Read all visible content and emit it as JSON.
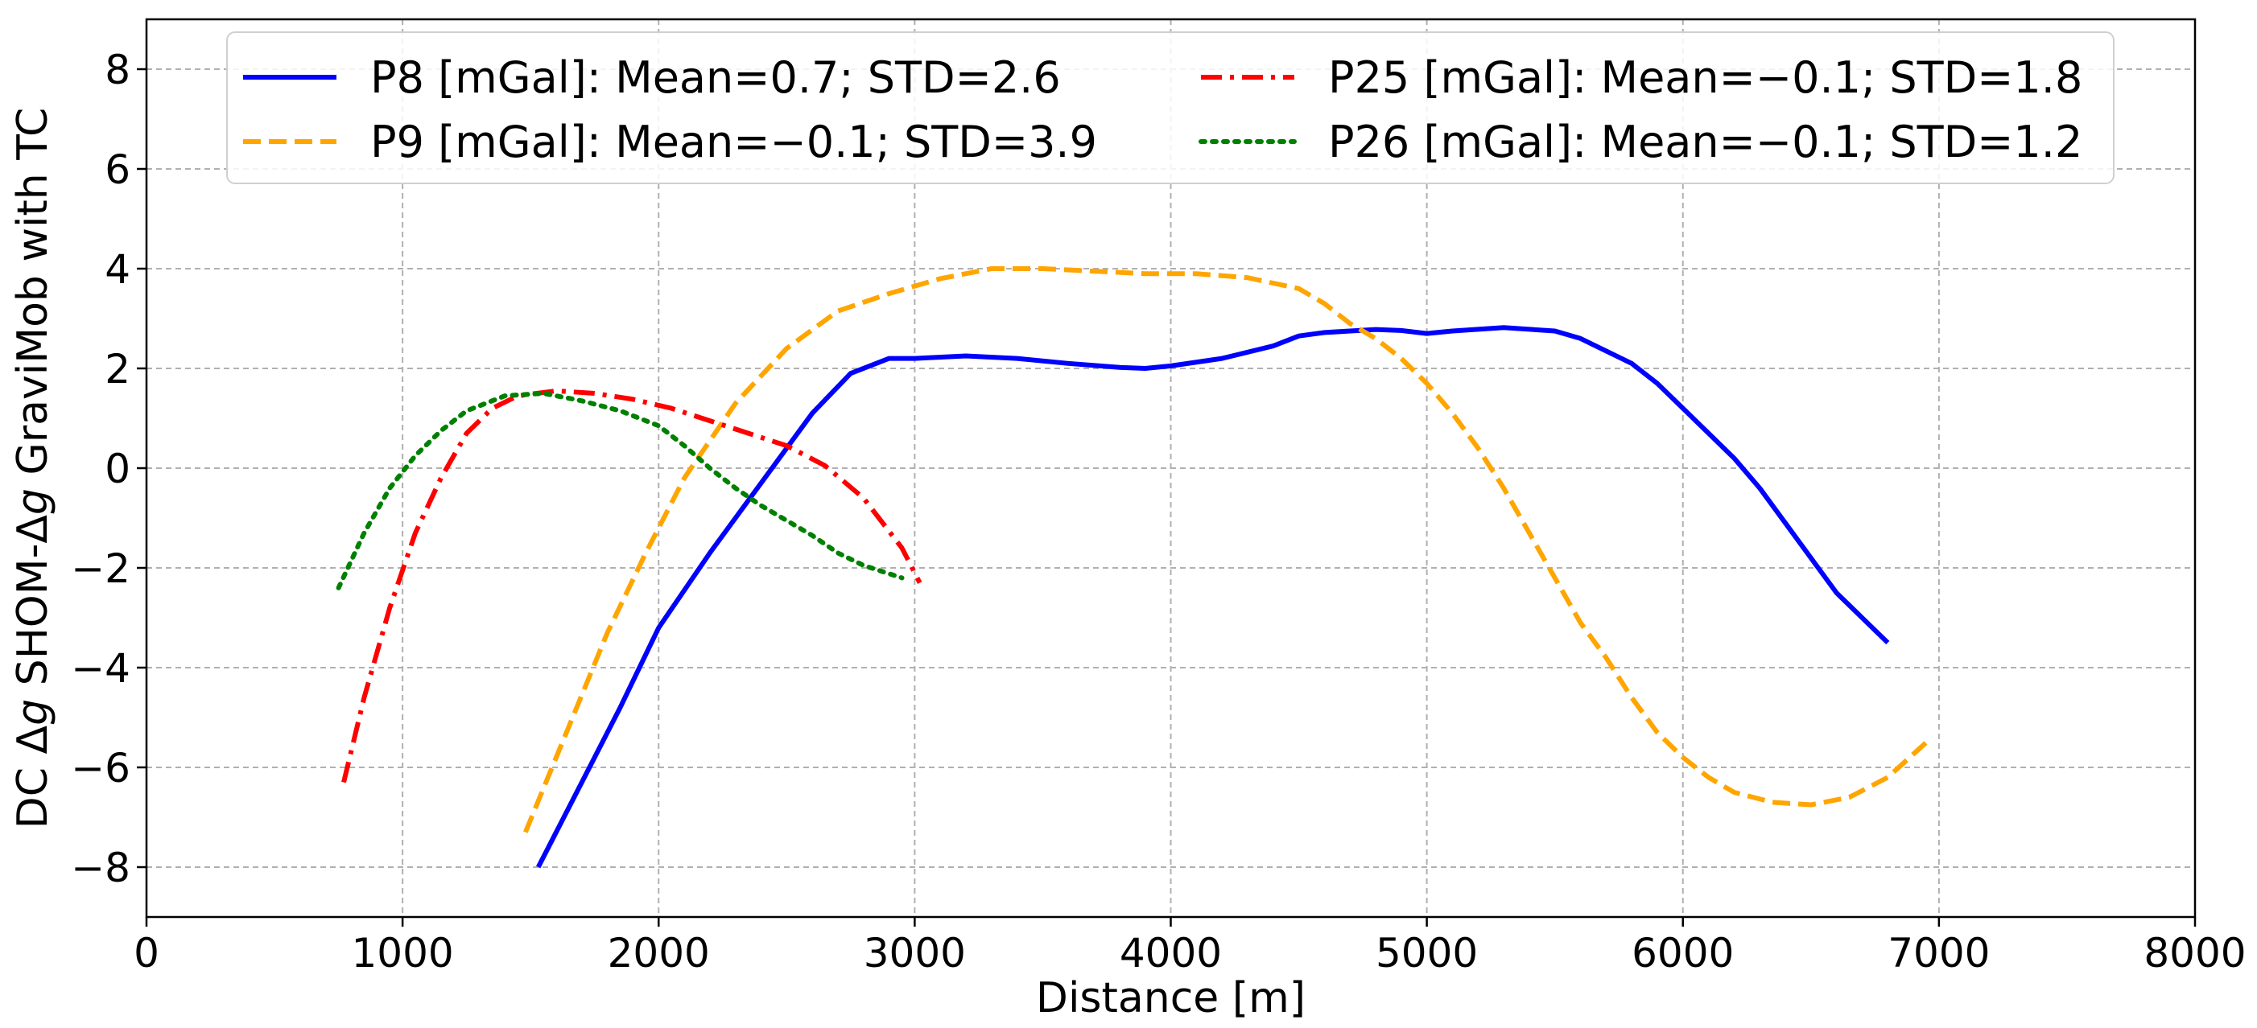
{
  "chart_data": {
    "type": "line",
    "title": "",
    "xlabel": "Distance [m]",
    "ylabel_parts": [
      "DC ",
      "Δ",
      "g",
      " SHOM-",
      "Δ",
      "g",
      " GraviMob with TC"
    ],
    "xlim": [
      0,
      8000
    ],
    "ylim": [
      -9,
      9
    ],
    "xticks": [
      0,
      1000,
      2000,
      3000,
      4000,
      5000,
      6000,
      7000,
      8000
    ],
    "yticks": [
      -8,
      -6,
      -4,
      -2,
      0,
      2,
      4,
      6,
      8
    ],
    "ytick_labels": [
      "−8",
      "−6",
      "−4",
      "−2",
      "0",
      "2",
      "4",
      "6",
      "8"
    ],
    "grid": true,
    "legend_position": "top",
    "series": [
      {
        "name": "P8",
        "legend_label": "P8 [mGal]: Mean=0.7; STD=2.6",
        "color": "#0000ff",
        "style": "solid",
        "points": [
          [
            1530,
            -8.0
          ],
          [
            1700,
            -6.3
          ],
          [
            1850,
            -4.8
          ],
          [
            2000,
            -3.2
          ],
          [
            2200,
            -1.7
          ],
          [
            2400,
            -0.3
          ],
          [
            2600,
            1.1
          ],
          [
            2750,
            1.9
          ],
          [
            2900,
            2.2
          ],
          [
            3000,
            2.2
          ],
          [
            3200,
            2.25
          ],
          [
            3400,
            2.2
          ],
          [
            3600,
            2.1
          ],
          [
            3800,
            2.02
          ],
          [
            3900,
            2.0
          ],
          [
            4000,
            2.05
          ],
          [
            4200,
            2.2
          ],
          [
            4400,
            2.45
          ],
          [
            4500,
            2.65
          ],
          [
            4600,
            2.72
          ],
          [
            4800,
            2.78
          ],
          [
            4900,
            2.76
          ],
          [
            5000,
            2.7
          ],
          [
            5100,
            2.75
          ],
          [
            5300,
            2.82
          ],
          [
            5500,
            2.75
          ],
          [
            5600,
            2.6
          ],
          [
            5800,
            2.1
          ],
          [
            5900,
            1.7
          ],
          [
            6000,
            1.2
          ],
          [
            6100,
            0.7
          ],
          [
            6200,
            0.2
          ],
          [
            6300,
            -0.4
          ],
          [
            6400,
            -1.1
          ],
          [
            6500,
            -1.8
          ],
          [
            6600,
            -2.5
          ],
          [
            6700,
            -3.0
          ],
          [
            6800,
            -3.5
          ]
        ]
      },
      {
        "name": "P9",
        "legend_label": "P9 [mGal]: Mean=−0.1; STD=3.9",
        "color": "#ffa500",
        "style": "dashed",
        "points": [
          [
            1480,
            -7.3
          ],
          [
            1600,
            -5.8
          ],
          [
            1800,
            -3.3
          ],
          [
            1950,
            -1.7
          ],
          [
            2100,
            -0.2
          ],
          [
            2300,
            1.3
          ],
          [
            2500,
            2.4
          ],
          [
            2700,
            3.15
          ],
          [
            2900,
            3.5
          ],
          [
            3100,
            3.8
          ],
          [
            3300,
            4.0
          ],
          [
            3500,
            4.0
          ],
          [
            3700,
            3.95
          ],
          [
            3900,
            3.9
          ],
          [
            4100,
            3.9
          ],
          [
            4300,
            3.82
          ],
          [
            4500,
            3.6
          ],
          [
            4600,
            3.3
          ],
          [
            4700,
            2.9
          ],
          [
            4800,
            2.6
          ],
          [
            4900,
            2.2
          ],
          [
            5000,
            1.7
          ],
          [
            5100,
            1.1
          ],
          [
            5200,
            0.4
          ],
          [
            5300,
            -0.4
          ],
          [
            5400,
            -1.3
          ],
          [
            5500,
            -2.2
          ],
          [
            5600,
            -3.1
          ],
          [
            5700,
            -3.8
          ],
          [
            5800,
            -4.6
          ],
          [
            5900,
            -5.3
          ],
          [
            6000,
            -5.8
          ],
          [
            6100,
            -6.2
          ],
          [
            6200,
            -6.5
          ],
          [
            6350,
            -6.7
          ],
          [
            6500,
            -6.75
          ],
          [
            6650,
            -6.6
          ],
          [
            6800,
            -6.2
          ],
          [
            6950,
            -5.5
          ]
        ]
      },
      {
        "name": "P25",
        "legend_label": "P25 [mGal]: Mean=−0.1; STD=1.8",
        "color": "#ff0000",
        "style": "dashdot",
        "points": [
          [
            770,
            -6.3
          ],
          [
            850,
            -4.6
          ],
          [
            950,
            -2.8
          ],
          [
            1050,
            -1.3
          ],
          [
            1150,
            -0.2
          ],
          [
            1250,
            0.7
          ],
          [
            1350,
            1.2
          ],
          [
            1450,
            1.45
          ],
          [
            1600,
            1.55
          ],
          [
            1750,
            1.5
          ],
          [
            1900,
            1.38
          ],
          [
            2050,
            1.2
          ],
          [
            2200,
            0.95
          ],
          [
            2350,
            0.7
          ],
          [
            2500,
            0.45
          ],
          [
            2650,
            0.05
          ],
          [
            2800,
            -0.6
          ],
          [
            2950,
            -1.6
          ],
          [
            3020,
            -2.3
          ]
        ]
      },
      {
        "name": "P26",
        "legend_label": "P26 [mGal]: Mean=−0.1; STD=1.2",
        "color": "#008000",
        "style": "dotted",
        "points": [
          [
            750,
            -2.4
          ],
          [
            850,
            -1.3
          ],
          [
            950,
            -0.4
          ],
          [
            1050,
            0.25
          ],
          [
            1150,
            0.75
          ],
          [
            1250,
            1.15
          ],
          [
            1400,
            1.45
          ],
          [
            1550,
            1.5
          ],
          [
            1700,
            1.35
          ],
          [
            1850,
            1.15
          ],
          [
            2000,
            0.85
          ],
          [
            2100,
            0.45
          ],
          [
            2200,
            0.0
          ],
          [
            2300,
            -0.4
          ],
          [
            2400,
            -0.75
          ],
          [
            2500,
            -1.05
          ],
          [
            2600,
            -1.35
          ],
          [
            2700,
            -1.7
          ],
          [
            2800,
            -1.95
          ],
          [
            2950,
            -2.2
          ]
        ]
      }
    ]
  }
}
